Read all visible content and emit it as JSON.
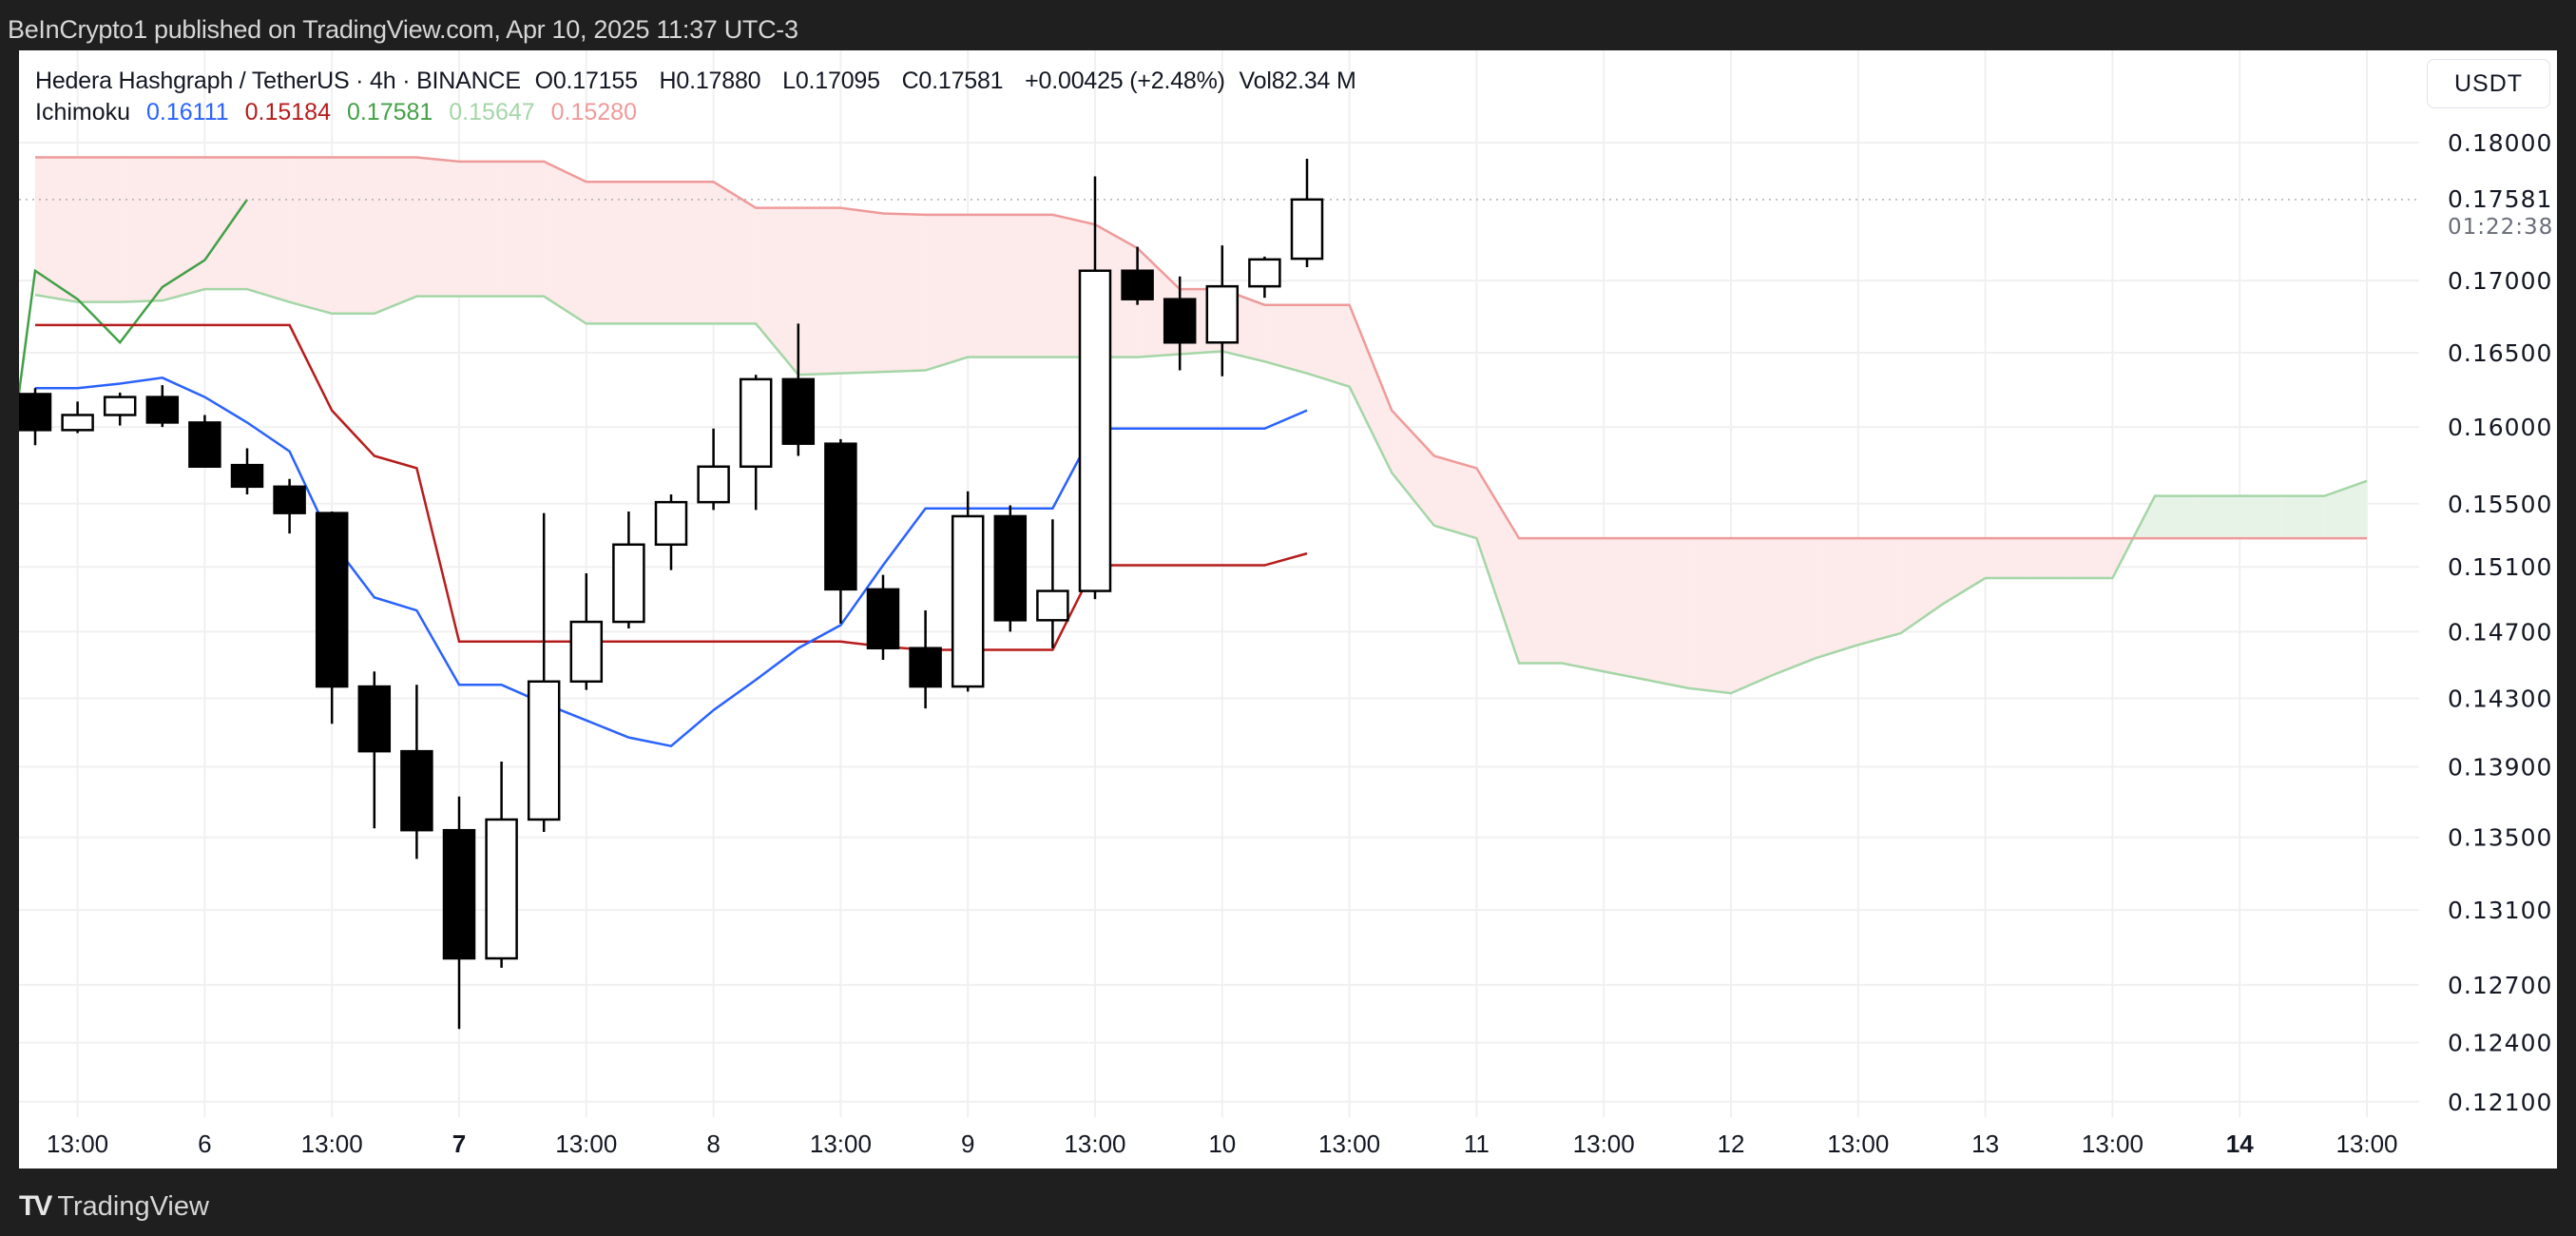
{
  "publish_line": "BeInCrypto1 published on TradingView.com, Apr 10, 2025 11:37 UTC-3",
  "symbol": {
    "name": "Hedera Hashgraph / TetherUS · 4h · BINANCE",
    "open_label": "O",
    "open": "0.17155",
    "high_label": "H",
    "high": "0.17880",
    "low_label": "L",
    "low": "0.17095",
    "close_label": "C",
    "close": "0.17581",
    "change": "+0.00425 (+2.48%)",
    "vol_label": "Vol",
    "vol": "82.34 M"
  },
  "indicator": {
    "name": "Ichimoku",
    "values": [
      {
        "value": "0.16111",
        "color": "#2962ff"
      },
      {
        "value": "0.15184",
        "color": "#b71c1c"
      },
      {
        "value": "0.17581",
        "color": "#43a047"
      },
      {
        "value": "0.15647",
        "color": "#a5d6a7"
      },
      {
        "value": "0.15280",
        "color": "#ef9a9a"
      }
    ]
  },
  "currency_button": "USDT",
  "current_price_label": "0.17581",
  "countdown": "01:22:38",
  "footer_brand": "TradingView",
  "chart_data": {
    "type": "candlestick",
    "title": "Hedera Hashgraph / TetherUS · 4h · BINANCE",
    "y_scale": "log",
    "ylim": [
      0.1195,
      0.1825
    ],
    "y_ticks": [
      "0.18000",
      "0.17000",
      "0.16500",
      "0.16000",
      "0.15500",
      "0.15100",
      "0.14700",
      "0.14300",
      "0.13900",
      "0.13500",
      "0.13100",
      "0.12700",
      "0.12400",
      "0.12100"
    ],
    "x_ticks": [
      {
        "label": "13:00",
        "bar": 1
      },
      {
        "label": "6",
        "bar": 4
      },
      {
        "label": "13:00",
        "bar": 7
      },
      {
        "label": "7",
        "bar": 10,
        "bold": true
      },
      {
        "label": "13:00",
        "bar": 13
      },
      {
        "label": "8",
        "bar": 16
      },
      {
        "label": "13:00",
        "bar": 19
      },
      {
        "label": "9",
        "bar": 22
      },
      {
        "label": "13:00",
        "bar": 25
      },
      {
        "label": "10",
        "bar": 28
      },
      {
        "label": "13:00",
        "bar": 31
      },
      {
        "label": "11",
        "bar": 34
      },
      {
        "label": "13:00",
        "bar": 37
      },
      {
        "label": "12",
        "bar": 40
      },
      {
        "label": "13:00",
        "bar": 43
      },
      {
        "label": "13",
        "bar": 46
      },
      {
        "label": "13:00",
        "bar": 49
      },
      {
        "label": "14",
        "bar": 52,
        "bold": true
      },
      {
        "label": "13:00",
        "bar": 55
      }
    ],
    "candles_ohlc": [
      [
        0.1622,
        0.1626,
        0.1588,
        0.1598
      ],
      [
        0.1598,
        0.1617,
        0.1596,
        0.1608
      ],
      [
        0.1608,
        0.1623,
        0.1601,
        0.162
      ],
      [
        0.162,
        0.1628,
        0.16,
        0.1603
      ],
      [
        0.1603,
        0.1608,
        0.1574,
        0.1574
      ],
      [
        0.1575,
        0.1586,
        0.1556,
        0.1561
      ],
      [
        0.1561,
        0.1566,
        0.1531,
        0.1544
      ],
      [
        0.1544,
        0.1545,
        0.1415,
        0.1437
      ],
      [
        0.1437,
        0.1446,
        0.1355,
        0.1399
      ],
      [
        0.1399,
        0.1438,
        0.1338,
        0.1354
      ],
      [
        0.1354,
        0.1373,
        0.1247,
        0.1284
      ],
      [
        0.1284,
        0.1393,
        0.1279,
        0.136
      ],
      [
        0.136,
        0.1544,
        0.1353,
        0.144
      ],
      [
        0.144,
        0.1506,
        0.1435,
        0.1476
      ],
      [
        0.1476,
        0.1545,
        0.1472,
        0.1524
      ],
      [
        0.1524,
        0.1556,
        0.1508,
        0.1551
      ],
      [
        0.1551,
        0.1599,
        0.1546,
        0.1574
      ],
      [
        0.1574,
        0.1635,
        0.1546,
        0.1632
      ],
      [
        0.1632,
        0.167,
        0.1581,
        0.1589
      ],
      [
        0.1589,
        0.1592,
        0.1475,
        0.1496
      ],
      [
        0.1496,
        0.1505,
        0.1453,
        0.146
      ],
      [
        0.146,
        0.1483,
        0.1424,
        0.1437
      ],
      [
        0.1437,
        0.1558,
        0.1434,
        0.1542
      ],
      [
        0.1542,
        0.1549,
        0.147,
        0.1477
      ],
      [
        0.1477,
        0.154,
        0.146,
        0.1495
      ],
      [
        0.1495,
        0.1775,
        0.149,
        0.1707
      ],
      [
        0.1707,
        0.1724,
        0.1683,
        0.1687
      ],
      [
        0.1687,
        0.1703,
        0.1638,
        0.1657
      ],
      [
        0.1657,
        0.1725,
        0.1634,
        0.1696
      ],
      [
        0.1696,
        0.1717,
        0.1688,
        0.1715
      ],
      [
        0.17155,
        0.1788,
        0.17095,
        0.17581
      ]
    ],
    "series": [
      {
        "name": "Conversion Line",
        "color": "#2962ff",
        "start_bar": 0,
        "values": [
          0.1626,
          0.1626,
          0.1629,
          0.1633,
          0.162,
          0.1603,
          0.1584,
          0.1526,
          0.1491,
          0.1483,
          0.1438,
          0.1438,
          0.1427,
          0.1417,
          0.1407,
          0.1402,
          0.1423,
          0.1441,
          0.146,
          0.1474,
          0.1511,
          0.1547,
          0.1547,
          0.1547,
          0.1547,
          0.1599,
          0.1599,
          0.1599,
          0.1599,
          0.1599,
          0.16111
        ]
      },
      {
        "name": "Base Line",
        "color": "#b71c1c",
        "start_bar": 0,
        "values": [
          0.1669,
          0.1669,
          0.1669,
          0.1669,
          0.1669,
          0.1669,
          0.1669,
          0.1611,
          0.1581,
          0.1573,
          0.1464,
          0.1464,
          0.1464,
          0.1464,
          0.1464,
          0.1464,
          0.1464,
          0.1464,
          0.1464,
          0.1464,
          0.1461,
          0.1459,
          0.1459,
          0.1459,
          0.1459,
          0.1511,
          0.1511,
          0.1511,
          0.1511,
          0.1511,
          0.15184
        ]
      },
      {
        "name": "Lagging Span",
        "color": "#43a047",
        "start_bar": -1,
        "values": [
          0.1495,
          0.1707,
          0.1687,
          0.1657,
          0.16955,
          0.17145,
          0.17581
        ]
      },
      {
        "name": "Leading Span A",
        "color": "#a5d6a7",
        "start_bar": 0,
        "values": [
          0.169,
          0.1685,
          0.1685,
          0.1686,
          0.1694,
          0.1694,
          0.1685,
          0.1677,
          0.1677,
          0.1689,
          0.1689,
          0.1689,
          0.1689,
          0.167,
          0.167,
          0.167,
          0.167,
          0.167,
          0.1635,
          0.1636,
          0.1637,
          0.1638,
          0.1647,
          0.1647,
          0.1647,
          0.1647,
          0.1647,
          0.1649,
          0.1651,
          0.1644,
          0.1636,
          0.1627,
          0.157,
          0.1536,
          0.1528,
          0.1451,
          0.1451,
          0.1446,
          0.1441,
          0.1436,
          0.1433,
          0.1444,
          0.1454,
          0.1462,
          0.1469,
          0.1487,
          0.1503,
          0.1503,
          0.1503,
          0.1503,
          0.1555,
          0.1555,
          0.1555,
          0.1555,
          0.1555,
          0.15647
        ]
      },
      {
        "name": "Leading Span B",
        "color": "#ef9a9a",
        "start_bar": 0,
        "values": [
          0.1789,
          0.1789,
          0.1789,
          0.1789,
          0.1789,
          0.1789,
          0.1789,
          0.1789,
          0.1789,
          0.1789,
          0.1786,
          0.1786,
          0.1786,
          0.1771,
          0.1771,
          0.1771,
          0.1771,
          0.1752,
          0.1752,
          0.1752,
          0.1748,
          0.1747,
          0.1747,
          0.1747,
          0.1747,
          0.174,
          0.1723,
          0.1694,
          0.1694,
          0.1683,
          0.1683,
          0.1683,
          0.1611,
          0.1581,
          0.1573,
          0.1528,
          0.1528,
          0.1528,
          0.1528,
          0.1528,
          0.1528,
          0.1528,
          0.1528,
          0.1528,
          0.1528,
          0.1528,
          0.1528,
          0.1528,
          0.1528,
          0.1528,
          0.1528,
          0.1528,
          0.1528,
          0.1528,
          0.1528,
          0.1528
        ]
      }
    ],
    "cloud_colors": {
      "bearish": "#fdeaea",
      "bullish": "#e8f3e8"
    },
    "last_price": 0.17581
  }
}
